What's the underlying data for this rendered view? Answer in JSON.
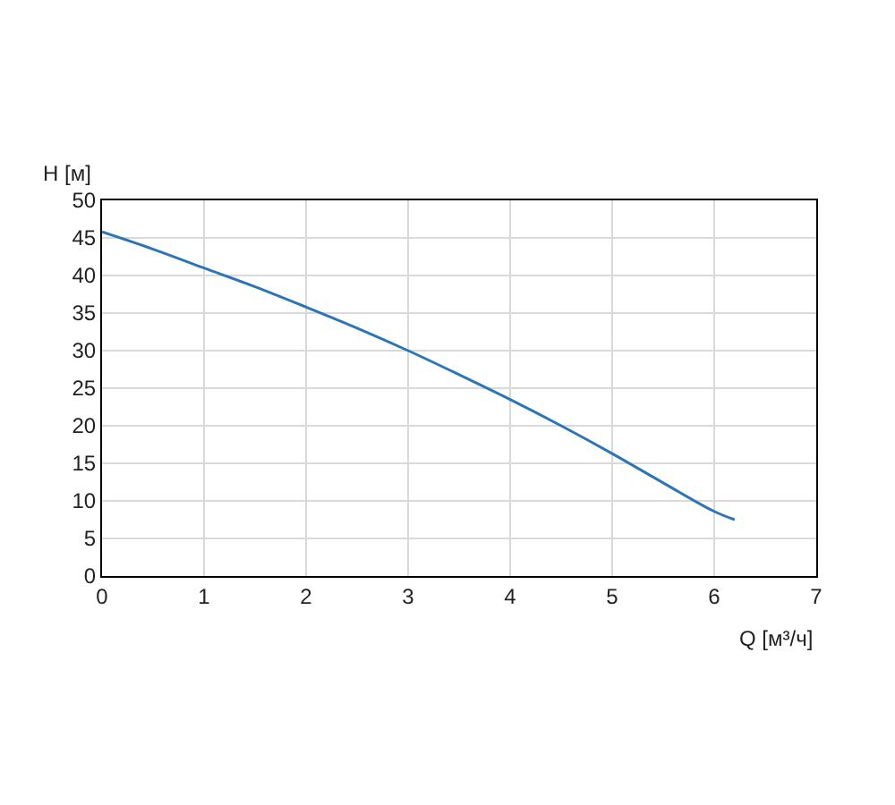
{
  "chart_data": {
    "type": "line",
    "xlabel": "Q [м³/ч]",
    "ylabel": "H [м]",
    "x": [
      0,
      0.5,
      1,
      1.5,
      2,
      2.5,
      3,
      3.5,
      4,
      4.5,
      5,
      5.5,
      6,
      6.2
    ],
    "series": [
      {
        "color": "#2e75b6",
        "values": [
          45.8,
          43.5,
          41.0,
          38.5,
          35.8,
          33.0,
          30.0,
          26.8,
          23.5,
          20.0,
          16.3,
          12.4,
          8.6,
          7.5
        ]
      }
    ],
    "xlim": [
      0,
      7
    ],
    "ylim": [
      0,
      50
    ],
    "xticks": [
      0,
      1,
      2,
      3,
      4,
      5,
      6,
      7
    ],
    "yticks": [
      0,
      5,
      10,
      15,
      20,
      25,
      30,
      35,
      40,
      45,
      50
    ],
    "grid": true,
    "marker": "none",
    "line_style": "solid"
  }
}
